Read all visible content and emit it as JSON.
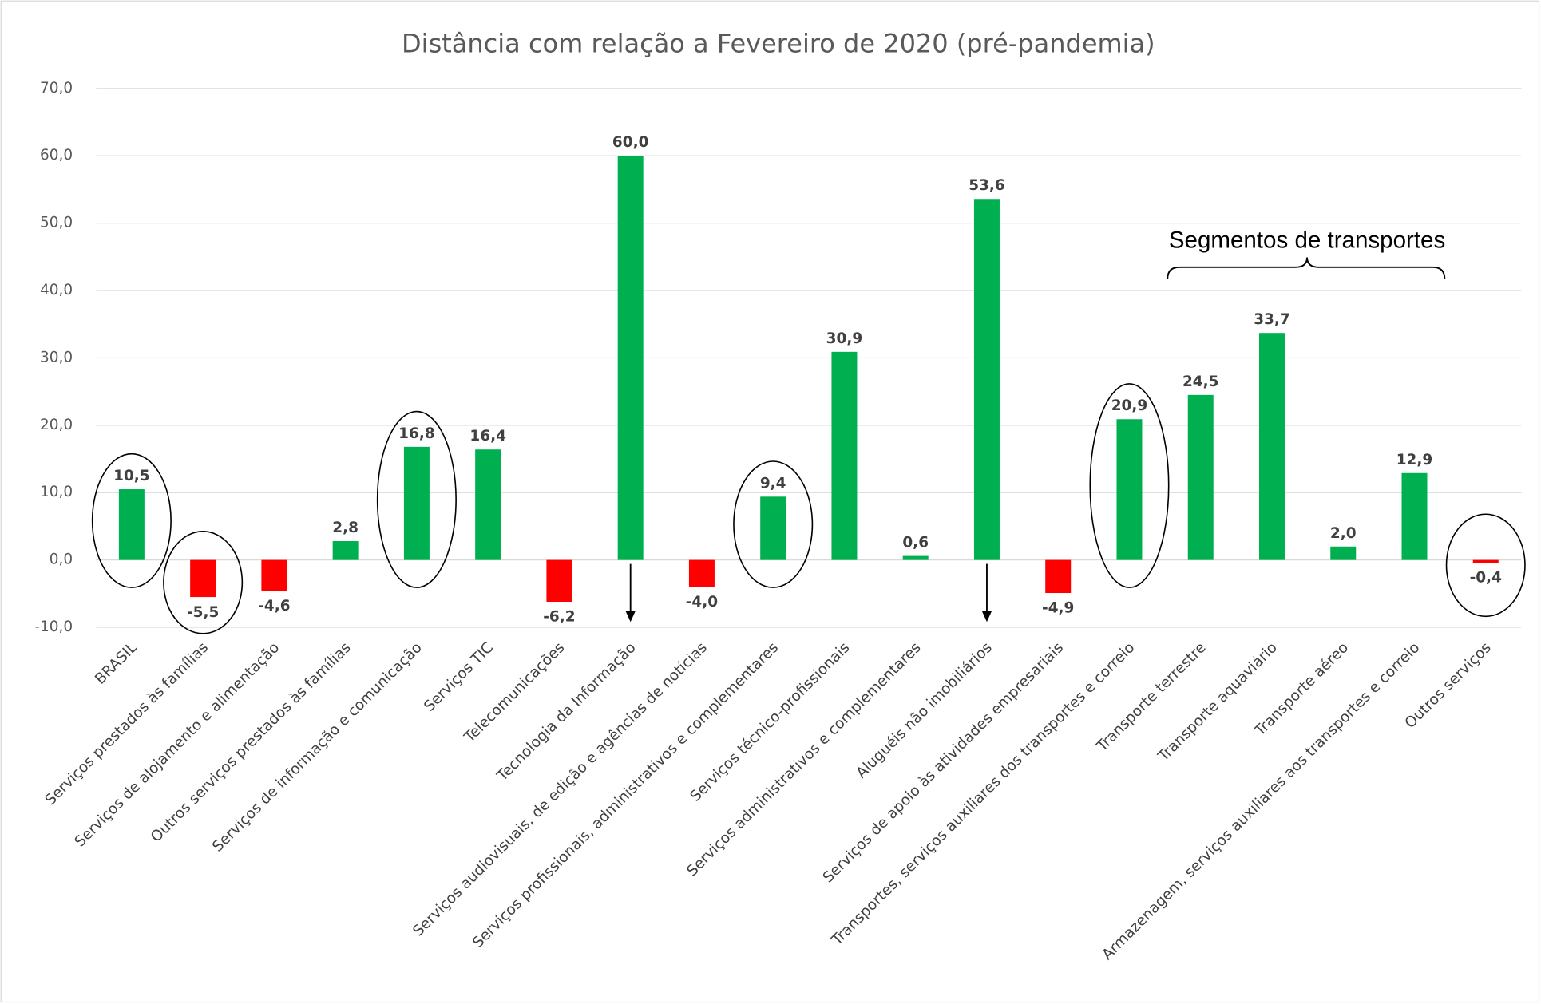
{
  "chart_data": {
    "type": "bar",
    "title": "Distância com relação a Fevereiro de 2020 (pré-pandemia)",
    "annotation": "Segmentos de transportes",
    "categories": [
      "BRASIL",
      "Serviços prestados às famílias",
      "Serviços de alojamento e alimentação",
      "Outros serviços prestados às famílias",
      "Serviços de informação e comunicação",
      "Serviços TIC",
      "Telecomunicações",
      "Tecnologia da Informação",
      "Serviços audiovisuais, de edição e agências de notícias",
      "Serviços profissionais, administrativos  e complementares",
      "Serviços técnico-profissionais",
      "Serviços administrativos e complementares",
      "Aluguéis não imobiliários",
      "Serviços de apoio às atividades empresariais",
      "Transportes, serviços auxiliares dos transportes e correio",
      "Transporte terrestre",
      "Transporte aquaviário",
      "Transporte aéreo",
      "Armazenagem, serviços auxiliares aos transportes e correio",
      "Outros serviços"
    ],
    "values": [
      10.5,
      -5.5,
      -4.6,
      2.8,
      16.8,
      16.4,
      -6.2,
      60.0,
      -4.0,
      9.4,
      30.9,
      0.6,
      53.6,
      -4.9,
      20.9,
      24.5,
      33.7,
      2.0,
      12.9,
      -0.4
    ],
    "value_labels": [
      "10,5",
      "-5,5",
      "-4,6",
      "2,8",
      "16,8",
      "16,4",
      "-6,2",
      "60,0",
      "-4,0",
      "9,4",
      "30,9",
      "0,6",
      "53,6",
      "-4,9",
      "20,9",
      "24,5",
      "33,7",
      "2,0",
      "12,9",
      "-0,4"
    ],
    "colors": [
      "#00b050",
      "#ff0000",
      "#ff0000",
      "#00b050",
      "#00b050",
      "#00b050",
      "#ff0000",
      "#00b050",
      "#ff0000",
      "#00b050",
      "#00b050",
      "#00b050",
      "#00b050",
      "#ff0000",
      "#00b050",
      "#00b050",
      "#00b050",
      "#00b050",
      "#00b050",
      "#ff0000"
    ],
    "ylim": [
      -10,
      70
    ],
    "yticks": [
      {
        "value": -10,
        "label": "-10,0"
      },
      {
        "value": 0,
        "label": "0,0"
      },
      {
        "value": 10,
        "label": "10,0"
      },
      {
        "value": 20,
        "label": "20,0"
      },
      {
        "value": 30,
        "label": "30,0"
      },
      {
        "value": 40,
        "label": "40,0"
      },
      {
        "value": 50,
        "label": "50,0"
      },
      {
        "value": 60,
        "label": "60,0"
      },
      {
        "value": 70,
        "label": "70,0"
      }
    ],
    "grid": true
  }
}
